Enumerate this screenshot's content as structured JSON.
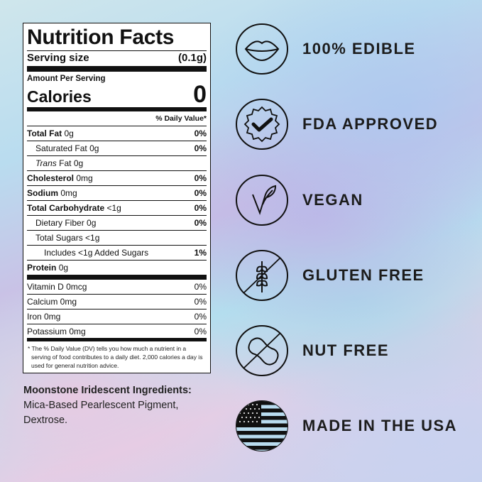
{
  "nutrition": {
    "title": "Nutrition Facts",
    "serving_label": "Serving size",
    "serving_value": "(0.1g)",
    "amount_per_serving": "Amount Per Serving",
    "calories_label": "Calories",
    "calories_value": "0",
    "dv_header": "% Daily Value*",
    "rows": [
      {
        "label": "Total Fat",
        "amount": "0g",
        "dv": "0%"
      },
      {
        "label": "Saturated Fat",
        "amount": "0g",
        "dv": "0%"
      },
      {
        "label": "Trans",
        "label_rest": "Fat 0g",
        "dv": ""
      },
      {
        "label": "Cholesterol",
        "amount": "0mg",
        "dv": "0%"
      },
      {
        "label": "Sodium",
        "amount": "0mg",
        "dv": "0%"
      },
      {
        "label": "Total Carbohydrate",
        "amount": "<1g",
        "dv": "0%"
      },
      {
        "label": "Dietary Fiber",
        "amount": "0g",
        "dv": "0%"
      },
      {
        "label": "Total Sugars",
        "amount": "<1g",
        "dv": ""
      },
      {
        "label": "Includes <1g Added Sugars",
        "amount": "",
        "dv": "1%"
      },
      {
        "label": "Protein",
        "amount": "0g",
        "dv": ""
      }
    ],
    "vitamins": [
      {
        "label": "Vitamin D 0mcg",
        "dv": "0%"
      },
      {
        "label": "Calcium 0mg",
        "dv": "0%"
      },
      {
        "label": "Iron 0mg",
        "dv": "0%"
      },
      {
        "label": "Potassium 0mg",
        "dv": "0%"
      }
    ],
    "footnote": "* The % Daily Value (DV) tells you how much a nutrient in a serving of food contributes to a daily diet. 2,000 calories a day is used for general nutrition advice."
  },
  "ingredients": {
    "heading": "Moonstone Iridescent Ingredients:",
    "line1": "Mica-Based Pearlescent Pigment,",
    "line2": "Dextrose."
  },
  "features": [
    {
      "icon": "lips-icon",
      "label": "100% EDIBLE"
    },
    {
      "icon": "check-badge-icon",
      "label": "FDA APPROVED"
    },
    {
      "icon": "vegan-leaf-icon",
      "label": "VEGAN"
    },
    {
      "icon": "no-wheat-icon",
      "label": "GLUTEN FREE"
    },
    {
      "icon": "no-peanut-icon",
      "label": "NUT FREE"
    },
    {
      "icon": "us-flag-icon",
      "label": "MADE IN THE USA"
    }
  ]
}
